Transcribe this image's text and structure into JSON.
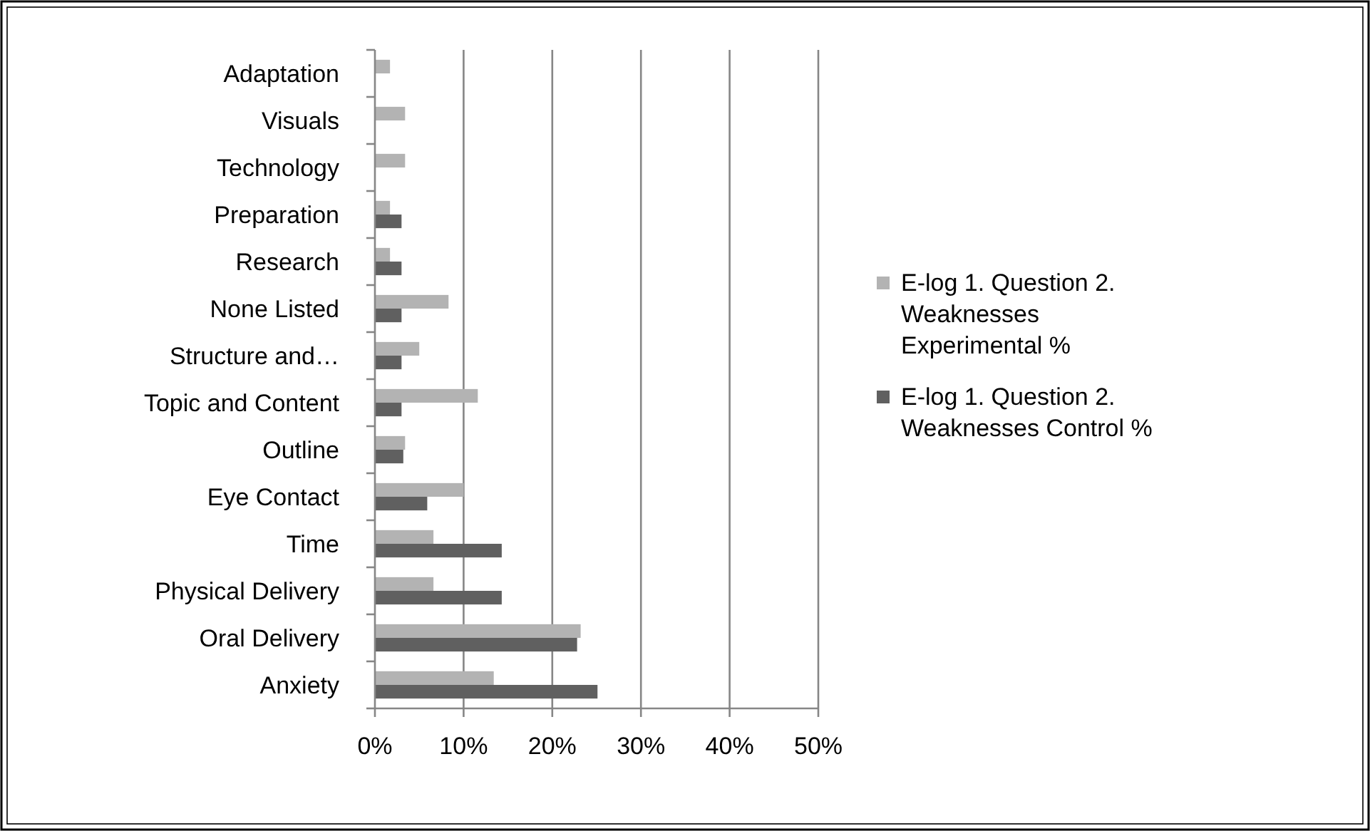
{
  "chart_data": {
    "type": "bar",
    "orientation": "horizontal",
    "categories": [
      "Adaptation",
      "Visuals",
      "Technology",
      "Preparation",
      "Research",
      "None Listed",
      "Structure and…",
      "Topic and Content",
      "Outline",
      "Eye Contact",
      "Time",
      "Physical Delivery",
      "Oral Delivery",
      "Anxiety"
    ],
    "series": [
      {
        "name": "E-log 1. Question 2. Weaknesses Experimental %",
        "color": "#b3b3b3",
        "values": [
          1.7,
          3.4,
          3.4,
          1.7,
          1.7,
          8.3,
          5.0,
          11.6,
          3.4,
          10.0,
          6.6,
          6.6,
          23.2,
          13.4
        ]
      },
      {
        "name": "E-log 1. Question 2. Weaknesses Control %",
        "color": "#606060",
        "values": [
          null,
          null,
          null,
          3.0,
          3.0,
          3.0,
          3.0,
          3.0,
          3.2,
          5.9,
          14.3,
          14.3,
          22.8,
          25.1
        ]
      }
    ],
    "xlim": [
      0,
      50
    ],
    "xticks": [
      {
        "value": 0,
        "label": "0%"
      },
      {
        "value": 10,
        "label": "10%"
      },
      {
        "value": 20,
        "label": "20%"
      },
      {
        "value": 30,
        "label": "30%"
      },
      {
        "value": 40,
        "label": "40%"
      },
      {
        "value": 50,
        "label": "50%"
      }
    ],
    "grid": "x",
    "legend": "right"
  }
}
